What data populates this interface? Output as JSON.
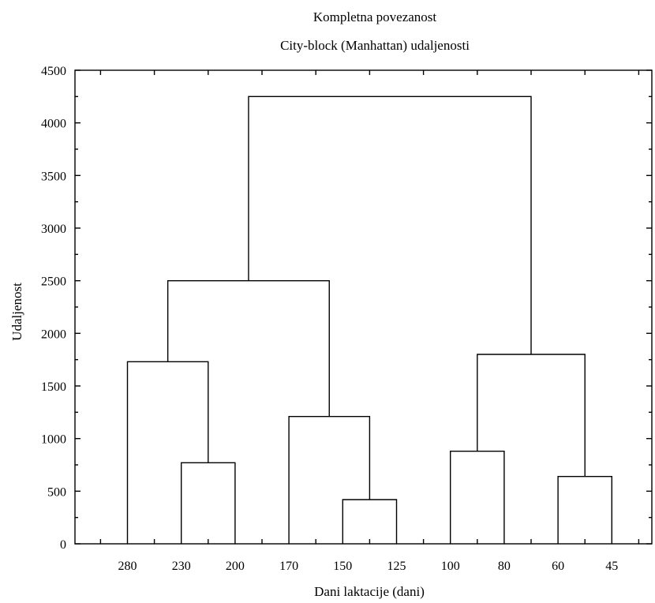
{
  "chart_data": {
    "type": "dendrogram",
    "title": "Kompletna povezanost",
    "subtitle": "City-block (Manhattan) udaljenosti",
    "xlabel": "Dani laktacije (dani)",
    "ylabel": "Udaljenost",
    "ylim": [
      0,
      4500
    ],
    "yticks": [
      0,
      500,
      1000,
      1500,
      2000,
      2500,
      3000,
      3500,
      4000,
      4500
    ],
    "leaves": [
      "280",
      "230",
      "200",
      "170",
      "150",
      "125",
      "100",
      "80",
      "60",
      "45"
    ],
    "merges": [
      {
        "left": "230",
        "right": "200",
        "height": 770
      },
      {
        "left": "280",
        "right": "230+200",
        "height": 1730
      },
      {
        "left": "150",
        "right": "125",
        "height": 420
      },
      {
        "left": "170",
        "right": "150+125",
        "height": 1210
      },
      {
        "left": "280–200",
        "right": "170–125",
        "height": 2500
      },
      {
        "left": "100",
        "right": "80",
        "height": 880
      },
      {
        "left": "60",
        "right": "45",
        "height": 640
      },
      {
        "left": "100+80",
        "right": "60+45",
        "height": 1800
      },
      {
        "left": "280–125",
        "right": "100–45",
        "height": 4250
      }
    ],
    "grid": false
  }
}
